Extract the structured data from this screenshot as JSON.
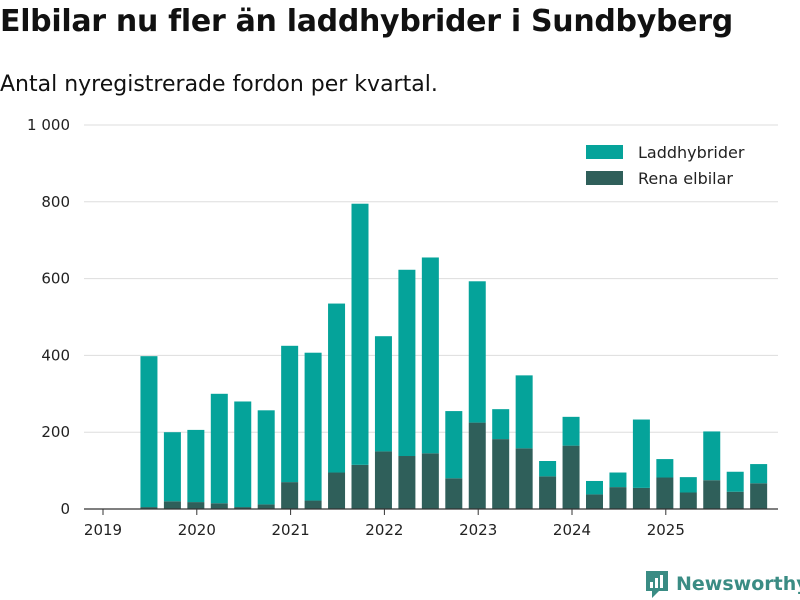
{
  "title": "Elbilar nu fler än laddhybrider i Sundbyberg",
  "subtitle": "Antal nyregistrerade fordon per kvartal.",
  "brand": {
    "name": "Newsworthy",
    "icon": "newsworthy-logo-icon"
  },
  "colors": {
    "laddhybrider": "#05a39a",
    "elbilar": "#2f5f5a",
    "grid": "#dddddd",
    "axis": "#333333",
    "brand": "#3a8c84"
  },
  "chart_data": {
    "type": "bar",
    "stacked": true,
    "title": "Elbilar nu fler än laddhybrider i Sundbyberg",
    "subtitle": "Antal nyregistrerade fordon per kvartal.",
    "xlabel": "",
    "ylabel": "",
    "ylim": [
      0,
      1000
    ],
    "yticks": [
      0,
      200,
      400,
      600,
      800,
      1000
    ],
    "ytick_labels": [
      "0",
      "200",
      "400",
      "600",
      "800",
      "1 000"
    ],
    "year_labels": [
      "2019",
      "2020",
      "2021",
      "2022",
      "2023",
      "2024",
      "2025"
    ],
    "legend_position": "top-right",
    "grid": true,
    "categories": [
      "2019 Q1",
      "2019 Q2",
      "2019 Q3",
      "2019 Q4",
      "2020 Q1",
      "2020 Q2",
      "2020 Q3",
      "2020 Q4",
      "2021 Q1",
      "2021 Q2",
      "2021 Q3",
      "2021 Q4",
      "2022 Q1",
      "2022 Q2",
      "2022 Q3",
      "2022 Q4",
      "2023 Q1",
      "2023 Q2",
      "2023 Q3",
      "2023 Q4",
      "2024 Q1",
      "2024 Q2",
      "2024 Q3",
      "2024 Q4",
      "2025 Q1",
      "2025 Q2",
      "2025 Q3",
      "2025 Q4"
    ],
    "series": [
      {
        "name": "Rena elbilar",
        "key": "elbilar",
        "values": [
          null,
          5,
          20,
          18,
          15,
          5,
          12,
          70,
          22,
          95,
          115,
          150,
          138,
          145,
          80,
          225,
          182,
          158,
          85,
          165,
          38,
          57,
          55,
          82,
          43,
          75,
          45,
          67
        ]
      },
      {
        "name": "Laddhybrider",
        "key": "laddhybrider",
        "values": [
          null,
          393,
          180,
          188,
          285,
          275,
          245,
          355,
          385,
          440,
          680,
          300,
          485,
          510,
          175,
          368,
          78,
          190,
          40,
          75,
          35,
          38,
          178,
          48,
          40,
          127,
          52,
          50
        ]
      }
    ]
  }
}
